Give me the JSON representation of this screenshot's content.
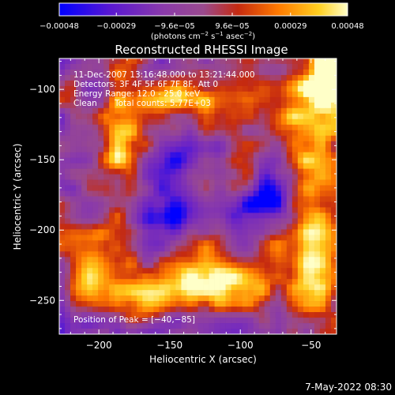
{
  "chart_data": {
    "type": "heatmap",
    "title": "Reconstructed RHESSI Image",
    "xlabel": "Heliocentric X (arcsec)",
    "ylabel": "Heliocentric Y (arcsec)",
    "xlim": [
      -228,
      -32
    ],
    "ylim": [
      -274,
      -78
    ],
    "x_ticks": [
      -200,
      -150,
      -100,
      -50
    ],
    "y_ticks": [
      -100,
      -150,
      -200,
      -250
    ],
    "x_tick_labels": [
      "−200",
      "−150",
      "−100",
      "−50"
    ],
    "y_tick_labels": [
      "−100",
      "−150",
      "−200",
      "−250"
    ],
    "colorbar": {
      "range": [
        -0.00048,
        0.00048
      ],
      "ticks": [
        -0.00048,
        -0.00029,
        -9.6e-05,
        9.6e-05,
        0.00029,
        0.00048
      ],
      "tick_labels": [
        "−0.00048",
        "−0.00029",
        "−9.6e−05",
        "9.6e−05",
        "0.00029",
        "0.00048"
      ],
      "unit_parts": [
        "(photons cm",
        "−2",
        " s",
        "−1",
        " asec",
        "−2",
        ")"
      ]
    },
    "annotations": {
      "time": "11-Dec-2007 13:16:48.000 to 13:21:44.000",
      "detectors": "Detectors: 3F 4F 5F 6F 7F 8F, Att 0",
      "energy": "Energy Range: 12.0 - 25.0 keV",
      "clean": "Clean",
      "counts": "Total counts: 5.77E+03",
      "peak": "Position of Peak = [−40,−85]"
    },
    "peak_position": [
      -40,
      -85
    ],
    "grid": false,
    "intensity_grid_size": [
      50,
      50
    ]
  },
  "footer": {
    "timestamp": "7-May-2022 08:30"
  },
  "colors": {
    "background": "#000000",
    "foreground": "#ffffff",
    "colormap": [
      "#0000ff",
      "#6a22c8",
      "#8a3aaa",
      "#9a4a8e",
      "#c52a10",
      "#ff7a00",
      "#ffcf20",
      "#ffffc8"
    ]
  }
}
